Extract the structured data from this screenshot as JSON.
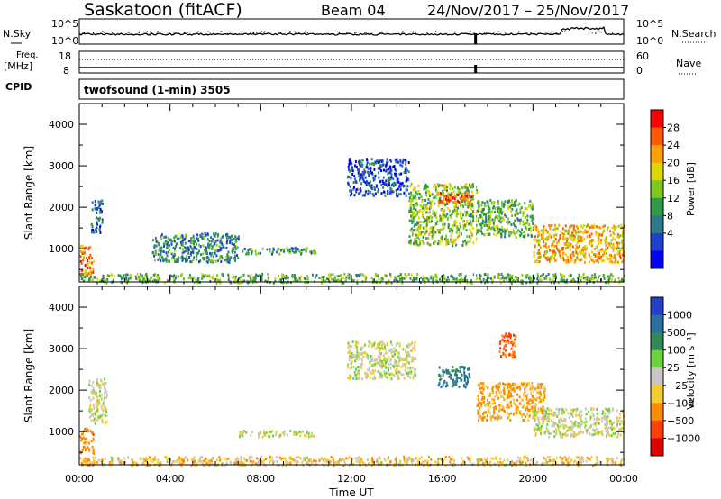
{
  "header": {
    "station": "Saskatoon (fitACF)",
    "beam": "Beam 04",
    "dates": "24/Nov/2017 – 25/Nov/2017"
  },
  "strip_panels": {
    "nsky_label": "N.Sky",
    "nsearch_label": "N.Search",
    "freq_label_line1": "Freq.",
    "freq_label_line2": "[MHz]",
    "nave_label": "Nave",
    "cpid_label": "CPID",
    "cpid_value": "twofsound (1-min) 3505",
    "noise_ticks_left": [
      "10^5",
      "10^0"
    ],
    "noise_ticks_right": [
      "10^5",
      "10^0"
    ],
    "freq_ticks_left": [
      "18",
      "8"
    ],
    "freq_ticks_right": [
      "60",
      "0"
    ]
  },
  "colorbars": {
    "power": {
      "label": "Power [dB]",
      "ticks": [
        "28",
        "24",
        "20",
        "16",
        "12",
        "8",
        "4"
      ],
      "colors": [
        "#ff0000",
        "#ff5a00",
        "#ffa000",
        "#ddd600",
        "#7dc81c",
        "#2f9a48",
        "#2e7a8a",
        "#1e40d0",
        "#0000ff"
      ]
    },
    "velocity": {
      "label": "Velocity [m s⁻¹]",
      "ticks": [
        "1000",
        "500",
        "100",
        "25",
        "−25",
        "−100",
        "−500",
        "−1000"
      ],
      "colors": [
        "#2240c8",
        "#2a6fa0",
        "#2f8a58",
        "#6cd23a",
        "#c8c8c0",
        "#f2cc30",
        "#ff8c00",
        "#ff4000",
        "#e00000"
      ]
    }
  },
  "axes": {
    "ylabel": "Slant Range [km]",
    "yticks": [
      "4000",
      "3000",
      "2000",
      "1000"
    ],
    "xticks": [
      "00:00",
      "04:00",
      "08:00",
      "12:00",
      "16:00",
      "20:00",
      "00:00"
    ],
    "xlabel": "Time UT"
  },
  "chart_data": [
    {
      "type": "heatmap",
      "title": "Power",
      "xlabel": "Time UT",
      "ylabel": "Slant Range [km]",
      "xlim": [
        0,
        24
      ],
      "ylim": [
        200,
        4500
      ],
      "colorbar": "Power [dB]",
      "colorbar_range": [
        0,
        32
      ],
      "scatter_regions": [
        {
          "t0": 0.0,
          "t1": 24.0,
          "r0": 200,
          "r1": 420,
          "value": 14
        },
        {
          "t0": 0.0,
          "t1": 0.6,
          "r0": 400,
          "r1": 1100,
          "value": 24
        },
        {
          "t0": 0.5,
          "t1": 1.0,
          "r0": 1400,
          "r1": 2200,
          "value": 8
        },
        {
          "t0": 3.2,
          "t1": 7.0,
          "r0": 700,
          "r1": 1400,
          "value": 10
        },
        {
          "t0": 7.0,
          "t1": 10.4,
          "r0": 900,
          "r1": 1050,
          "value": 12
        },
        {
          "t0": 11.8,
          "t1": 14.5,
          "r0": 2300,
          "r1": 3200,
          "value": 6
        },
        {
          "t0": 14.5,
          "t1": 17.5,
          "r0": 1100,
          "r1": 2600,
          "value": 16
        },
        {
          "t0": 15.8,
          "t1": 17.3,
          "r0": 2100,
          "r1": 2400,
          "value": 26
        },
        {
          "t0": 17.5,
          "t1": 20.0,
          "r0": 1300,
          "r1": 2200,
          "value": 14
        },
        {
          "t0": 20.0,
          "t1": 24.0,
          "r0": 700,
          "r1": 1600,
          "value": 22
        }
      ]
    },
    {
      "type": "heatmap",
      "title": "Velocity",
      "xlabel": "Time UT",
      "ylabel": "Slant Range [km]",
      "xlim": [
        0,
        24
      ],
      "ylim": [
        200,
        4500
      ],
      "colorbar": "Velocity [m s⁻¹]",
      "colorbar_range": [
        -1000,
        1000
      ],
      "scatter_regions": [
        {
          "t0": 0.0,
          "t1": 24.0,
          "r0": 200,
          "r1": 420,
          "value": -60
        },
        {
          "t0": 0.0,
          "t1": 0.6,
          "r0": 500,
          "r1": 1100,
          "value": -300
        },
        {
          "t0": 0.4,
          "t1": 1.2,
          "r0": 1200,
          "r1": 2300,
          "value": 0
        },
        {
          "t0": 7.0,
          "t1": 10.4,
          "r0": 900,
          "r1": 1050,
          "value": 0
        },
        {
          "t0": 11.8,
          "t1": 14.8,
          "r0": 2300,
          "r1": 3200,
          "value": 0
        },
        {
          "t0": 15.8,
          "t1": 17.2,
          "r0": 2100,
          "r1": 2600,
          "value": 300
        },
        {
          "t0": 17.5,
          "t1": 20.5,
          "r0": 1300,
          "r1": 2200,
          "value": -150
        },
        {
          "t0": 18.5,
          "t1": 19.2,
          "r0": 2800,
          "r1": 3400,
          "value": -500
        },
        {
          "t0": 20.0,
          "t1": 24.0,
          "r0": 900,
          "r1": 1600,
          "value": 0
        }
      ]
    }
  ]
}
